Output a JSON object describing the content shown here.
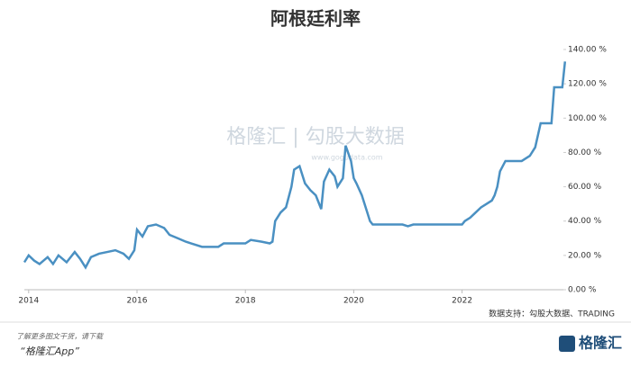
{
  "chart_data": {
    "type": "line",
    "title": "阿根廷利率",
    "x": [
      2013.92,
      2014.0,
      2014.1,
      2014.2,
      2014.35,
      2014.45,
      2014.55,
      2014.7,
      2014.85,
      2014.95,
      2015.05,
      2015.15,
      2015.3,
      2015.45,
      2015.6,
      2015.75,
      2015.85,
      2015.95,
      2016.0,
      2016.1,
      2016.2,
      2016.35,
      2016.5,
      2016.6,
      2016.75,
      2016.9,
      2017.0,
      2017.2,
      2017.5,
      2017.6,
      2018.0,
      2018.1,
      2018.3,
      2018.45,
      2018.5,
      2018.55,
      2018.65,
      2018.75,
      2018.85,
      2018.9,
      2019.0,
      2019.1,
      2019.2,
      2019.3,
      2019.4,
      2019.45,
      2019.55,
      2019.65,
      2019.7,
      2019.8,
      2019.85,
      2019.95,
      2020.0,
      2020.05,
      2020.15,
      2020.25,
      2020.3,
      2020.35,
      2020.9,
      2021.0,
      2021.1,
      2021.5,
      2022.0,
      2022.05,
      2022.15,
      2022.25,
      2022.35,
      2022.45,
      2022.55,
      2022.6,
      2022.65,
      2022.7,
      2022.8,
      2023.1,
      2023.25,
      2023.35,
      2023.45,
      2023.65,
      2023.7,
      2023.85,
      2023.9
    ],
    "series": [
      {
        "name": "利率",
        "color": "#4a90c2",
        "values": [
          16,
          20,
          17,
          15,
          19,
          15,
          20,
          16,
          22,
          18,
          13,
          19,
          21,
          22,
          23,
          21,
          18,
          23,
          35,
          31,
          37,
          38,
          36,
          32,
          30,
          28,
          27,
          25,
          25,
          27,
          27,
          29,
          28,
          27,
          28,
          40,
          45,
          48,
          60,
          70,
          72,
          62,
          58,
          55,
          47,
          63,
          70,
          66,
          60,
          65,
          84,
          75,
          65,
          62,
          55,
          45,
          40,
          38,
          38,
          37,
          38,
          38,
          38,
          40,
          42,
          45,
          48,
          50,
          52,
          55,
          60,
          69,
          75,
          75,
          78,
          83,
          97,
          97,
          118,
          118,
          133
        ]
      }
    ],
    "xlim": [
      2013.92,
      2023.92
    ],
    "xticks": [
      2014,
      2016,
      2018,
      2020,
      2022
    ],
    "ylim": [
      0,
      140
    ],
    "yticks": [
      {
        "value": 0,
        "label": "0.00 %"
      },
      {
        "value": 20,
        "label": "20.00 %"
      },
      {
        "value": 40,
        "label": "40.00 %"
      },
      {
        "value": 60,
        "label": "60.00 %"
      },
      {
        "value": 80,
        "label": "80.00 %"
      },
      {
        "value": 100,
        "label": "100.00 %"
      },
      {
        "value": 120,
        "label": "120.00 %"
      },
      {
        "value": 140,
        "label": "140.00 %"
      }
    ],
    "grid": false,
    "source": "数据支持：勾股大数据、TRADING",
    "watermark": "格隆汇 | 勾股大数据",
    "watermark_url": "www.gogudata.com",
    "footer_note": "了解更多图文干货，请下载",
    "footer_app": "“格隆汇App”",
    "logo": "格隆汇"
  }
}
